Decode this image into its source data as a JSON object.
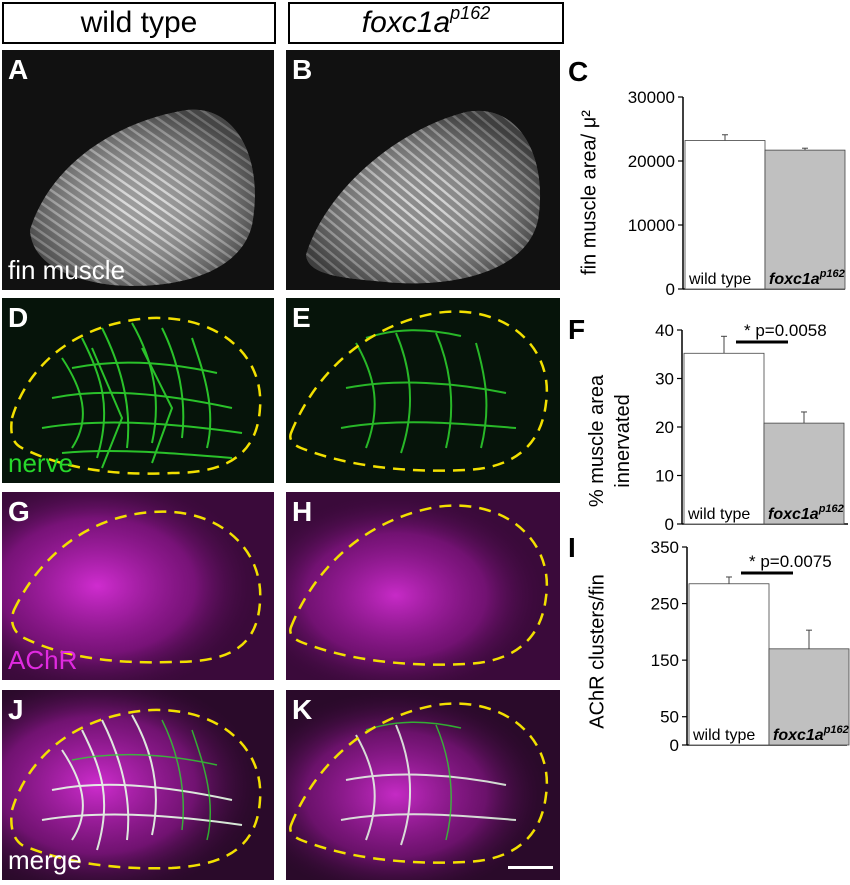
{
  "headers": {
    "wild_type": "wild type",
    "mutant_base": "foxc1a",
    "mutant_sup": "p162"
  },
  "panels": {
    "A": {
      "label": "A",
      "text": "fin muscle",
      "text_color": "#ffffff"
    },
    "B": {
      "label": "B"
    },
    "D": {
      "label": "D",
      "text": "nerve",
      "text_color": "#27d82b"
    },
    "E": {
      "label": "E"
    },
    "G": {
      "label": "G",
      "text": "AChR",
      "text_color": "#e02ae0"
    },
    "H": {
      "label": "H"
    },
    "J": {
      "label": "J",
      "text": "merge",
      "text_color": "#ffffff"
    },
    "K": {
      "label": "K"
    }
  },
  "colors": {
    "nerve": "#2ed52e",
    "achr": "#c21fc2",
    "outline": "#f2e000",
    "bar_wt": "#ffffff",
    "bar_mut": "#c0c0c0"
  },
  "chart_data": [
    {
      "id": "C",
      "label": "C",
      "type": "bar",
      "ylabel": "fin muscle area/ μ²",
      "categories": [
        "wild type",
        "foxc1a"
      ],
      "category_sup": [
        "",
        "p162"
      ],
      "values": [
        23200,
        21700
      ],
      "errors": [
        900,
        300
      ],
      "ylim": [
        0,
        30000
      ],
      "yticks": [
        0,
        10000,
        20000,
        30000
      ]
    },
    {
      "id": "F",
      "label": "F",
      "type": "bar",
      "ylabel": "% muscle area innervated",
      "categories": [
        "wild type",
        "foxc1a"
      ],
      "category_sup": [
        "",
        "p162"
      ],
      "values": [
        35.2,
        20.8
      ],
      "errors": [
        3.5,
        2.3
      ],
      "ylim": [
        0,
        40
      ],
      "yticks": [
        0,
        10,
        20,
        30,
        40
      ],
      "significance": "* p=0.0058"
    },
    {
      "id": "I",
      "label": "I",
      "type": "bar",
      "ylabel": "AChR clusters/fin",
      "categories": [
        "wild type",
        "foxc1a"
      ],
      "category_sup": [
        "",
        "p162"
      ],
      "values": [
        285,
        170
      ],
      "errors": [
        12,
        33
      ],
      "ylim": [
        0,
        350
      ],
      "yticks": [
        0,
        50,
        150,
        250,
        350
      ],
      "significance": "* p=0.0075"
    }
  ]
}
